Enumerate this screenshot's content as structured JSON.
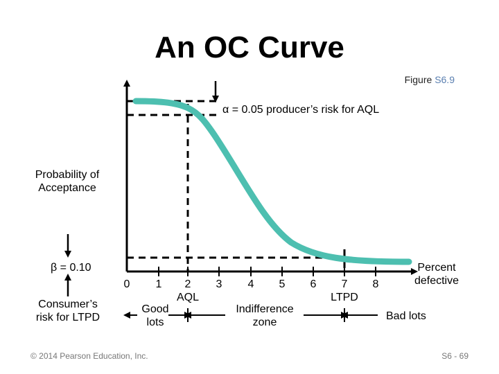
{
  "title": "An OC Curve",
  "figure_ref": {
    "prefix": "Figure ",
    "number": "S6.9"
  },
  "y_axis_label": [
    "Probability of",
    "Acceptance"
  ],
  "x_axis_label": [
    "Percent",
    "defective"
  ],
  "alpha_note": "α = 0.05 producer’s risk for AQL",
  "beta_value": "β = 0.10",
  "beta_note": [
    "Consumer’s",
    "risk for LTPD"
  ],
  "x_ticks": [
    "0",
    "1",
    "2",
    "3",
    "4",
    "5",
    "6",
    "7",
    "8"
  ],
  "aql_label": "AQL",
  "ltpd_label": "LTPD",
  "zones": {
    "good": [
      "Good",
      "lots"
    ],
    "indifference": [
      "Indifference",
      "zone"
    ],
    "bad": "Bad lots"
  },
  "footer": {
    "copyright": "© 2014 Pearson Education, Inc.",
    "slide": "S6 - 69"
  },
  "colors": {
    "curve": "#4dbfb0",
    "axis": "#000000"
  }
}
